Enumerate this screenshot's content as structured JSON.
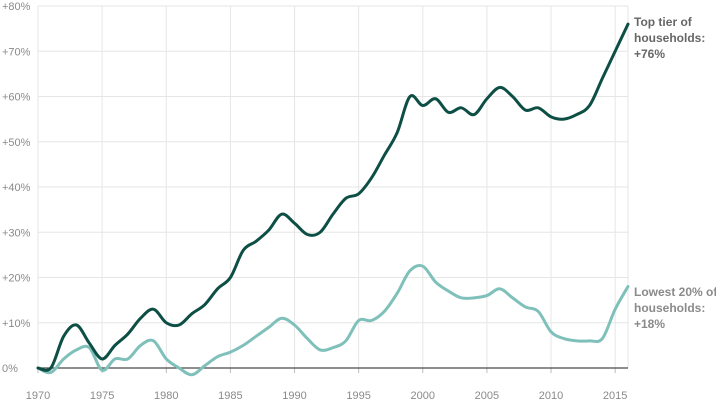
{
  "chart_data": {
    "type": "line",
    "title": "",
    "xlabel": "",
    "ylabel": "",
    "xlim": [
      1970,
      2016
    ],
    "ylim": [
      -5,
      80
    ],
    "x_ticks": [
      1970,
      1975,
      1980,
      1985,
      1990,
      1995,
      2000,
      2005,
      2010,
      2015
    ],
    "x_tick_labels": [
      "1970",
      "1975",
      "1980",
      "1985",
      "1990",
      "1995",
      "2000",
      "2005",
      "2010",
      "2015"
    ],
    "y_ticks": [
      0,
      10,
      20,
      30,
      40,
      50,
      60,
      70,
      80
    ],
    "y_tick_labels": [
      "0%",
      "+10%",
      "+20%",
      "+30%",
      "+40%",
      "+50%",
      "+60%",
      "+70%",
      "+80%"
    ],
    "grid": true,
    "zero_line": true,
    "series": [
      {
        "name": "Top tier of households",
        "color": "#0d4f45",
        "label_lines": [
          "Top tier of",
          "households:",
          "+76%"
        ],
        "points": [
          [
            1970,
            0
          ],
          [
            1971,
            0
          ],
          [
            1972,
            7
          ],
          [
            1973,
            9.5
          ],
          [
            1974,
            5.5
          ],
          [
            1975,
            2
          ],
          [
            1976,
            5
          ],
          [
            1977,
            7.5
          ],
          [
            1978,
            11
          ],
          [
            1979,
            13
          ],
          [
            1980,
            10
          ],
          [
            1981,
            9.5
          ],
          [
            1982,
            12
          ],
          [
            1983,
            14
          ],
          [
            1984,
            17.5
          ],
          [
            1985,
            20
          ],
          [
            1986,
            26
          ],
          [
            1987,
            28
          ],
          [
            1988,
            30.5
          ],
          [
            1989,
            34
          ],
          [
            1990,
            32
          ],
          [
            1991,
            29.5
          ],
          [
            1992,
            30
          ],
          [
            1993,
            34
          ],
          [
            1994,
            37.5
          ],
          [
            1995,
            38.5
          ],
          [
            1996,
            42
          ],
          [
            1997,
            47
          ],
          [
            1998,
            52
          ],
          [
            1999,
            60
          ],
          [
            2000,
            58
          ],
          [
            2001,
            59.5
          ],
          [
            2002,
            56.5
          ],
          [
            2003,
            57.5
          ],
          [
            2004,
            56
          ],
          [
            2005,
            59.5
          ],
          [
            2006,
            62
          ],
          [
            2007,
            60
          ],
          [
            2008,
            57
          ],
          [
            2009,
            57.5
          ],
          [
            2010,
            55.5
          ],
          [
            2011,
            55
          ],
          [
            2012,
            56
          ],
          [
            2013,
            58
          ],
          [
            2014,
            64
          ],
          [
            2015,
            70
          ],
          [
            2016,
            76
          ]
        ]
      },
      {
        "name": "Lowest 20% of households",
        "color": "#7fc0bb",
        "label_lines": [
          "Lowest 20% of",
          "households:",
          "+18%"
        ],
        "points": [
          [
            1970,
            0
          ],
          [
            1971,
            -1
          ],
          [
            1972,
            2
          ],
          [
            1973,
            4
          ],
          [
            1974,
            4.5
          ],
          [
            1975,
            -0.5
          ],
          [
            1976,
            2
          ],
          [
            1977,
            2
          ],
          [
            1978,
            5
          ],
          [
            1979,
            6
          ],
          [
            1980,
            2
          ],
          [
            1981,
            0
          ],
          [
            1982,
            -1.5
          ],
          [
            1983,
            0.5
          ],
          [
            1984,
            2.5
          ],
          [
            1985,
            3.5
          ],
          [
            1986,
            5
          ],
          [
            1987,
            7
          ],
          [
            1988,
            9
          ],
          [
            1989,
            11
          ],
          [
            1990,
            9.5
          ],
          [
            1991,
            6.5
          ],
          [
            1992,
            4
          ],
          [
            1993,
            4.5
          ],
          [
            1994,
            6
          ],
          [
            1995,
            10.5
          ],
          [
            1996,
            10.5
          ],
          [
            1997,
            12.5
          ],
          [
            1998,
            16.5
          ],
          [
            1999,
            21.5
          ],
          [
            2000,
            22.5
          ],
          [
            2001,
            19
          ],
          [
            2002,
            17
          ],
          [
            2003,
            15.5
          ],
          [
            2004,
            15.5
          ],
          [
            2005,
            16
          ],
          [
            2006,
            17.5
          ],
          [
            2007,
            15.5
          ],
          [
            2008,
            13.5
          ],
          [
            2009,
            12.5
          ],
          [
            2010,
            8
          ],
          [
            2011,
            6.5
          ],
          [
            2012,
            6
          ],
          [
            2013,
            6
          ],
          [
            2014,
            6.5
          ],
          [
            2015,
            13
          ],
          [
            2016,
            18
          ]
        ]
      }
    ]
  }
}
